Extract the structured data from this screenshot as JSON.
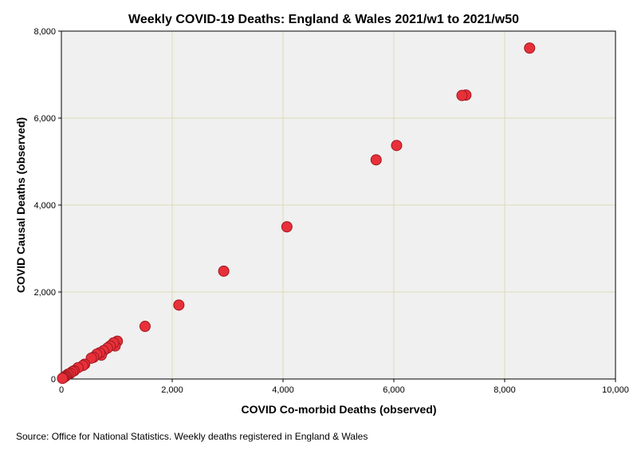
{
  "chart_data": {
    "type": "scatter",
    "title": "Weekly COVID-19 Deaths: England & Wales 2021/w1 to 2021/w50",
    "xlabel": "COVID Co-morbid Deaths (observed)",
    "ylabel": "COVID Causal Deaths (observed)",
    "xlim": [
      0,
      10000
    ],
    "ylim": [
      0,
      8000
    ],
    "xticks": [
      0,
      2000,
      4000,
      6000,
      8000,
      10000
    ],
    "xtick_labels": [
      "0",
      "2,000",
      "4,000",
      "6,000",
      "8,000",
      "10,000"
    ],
    "yticks": [
      0,
      2000,
      4000,
      6000,
      8000
    ],
    "ytick_labels": [
      "0",
      "2,000",
      "4,000",
      "6,000",
      "8,000"
    ],
    "grid": true,
    "plot_background": "#f0f0f0",
    "grid_color": "#dcdcb8",
    "marker_color": "#e8303a",
    "marker_edge_color": "#a01820",
    "points": [
      {
        "x": 8450,
        "y": 7610
      },
      {
        "x": 7300,
        "y": 6530
      },
      {
        "x": 7230,
        "y": 6520
      },
      {
        "x": 6050,
        "y": 5370
      },
      {
        "x": 5680,
        "y": 5040
      },
      {
        "x": 4070,
        "y": 3500
      },
      {
        "x": 2930,
        "y": 2480
      },
      {
        "x": 2120,
        "y": 1700
      },
      {
        "x": 1510,
        "y": 1210
      },
      {
        "x": 1010,
        "y": 870
      },
      {
        "x": 970,
        "y": 760
      },
      {
        "x": 940,
        "y": 830
      },
      {
        "x": 880,
        "y": 760
      },
      {
        "x": 830,
        "y": 710
      },
      {
        "x": 760,
        "y": 650
      },
      {
        "x": 720,
        "y": 550
      },
      {
        "x": 690,
        "y": 600
      },
      {
        "x": 640,
        "y": 570
      },
      {
        "x": 580,
        "y": 500
      },
      {
        "x": 540,
        "y": 480
      },
      {
        "x": 420,
        "y": 340
      },
      {
        "x": 390,
        "y": 310
      },
      {
        "x": 300,
        "y": 260
      },
      {
        "x": 230,
        "y": 190
      },
      {
        "x": 200,
        "y": 170
      },
      {
        "x": 160,
        "y": 130
      },
      {
        "x": 120,
        "y": 110
      },
      {
        "x": 90,
        "y": 80
      },
      {
        "x": 70,
        "y": 60
      },
      {
        "x": 50,
        "y": 40
      },
      {
        "x": 30,
        "y": 25
      },
      {
        "x": 20,
        "y": 15
      }
    ]
  },
  "source_note": "Source: Office for National Statistics. Weekly deaths registered in England & Wales"
}
